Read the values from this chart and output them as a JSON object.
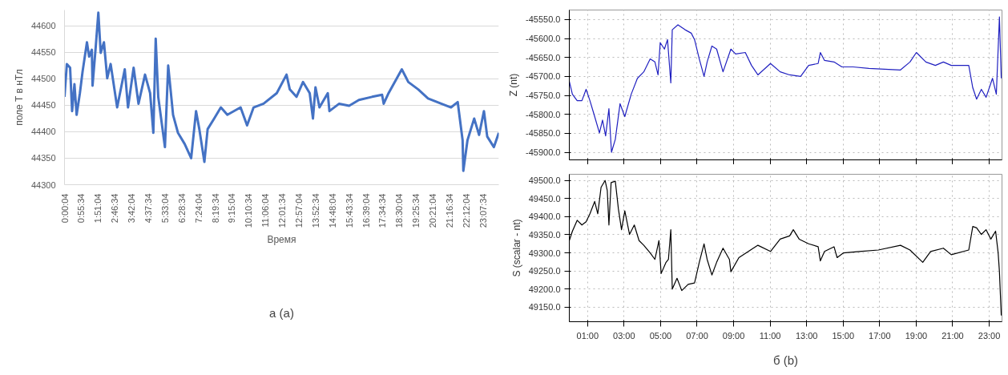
{
  "chart_data": [
    {
      "type": "line",
      "xlabel": "Время",
      "ylabel": "поле T в нТл",
      "annotations": [
        "а (a)"
      ],
      "color": "#4472c4",
      "grid": "y",
      "xlim": [
        0,
        24
      ],
      "ylim": [
        44300,
        44630
      ],
      "yticks": [
        44300,
        44350,
        44400,
        44450,
        44500,
        44550,
        44600
      ],
      "xticks": [
        {
          "value": 0.0011,
          "label": "0:00:04"
        },
        {
          "value": 0.9261,
          "label": "0:55:34"
        },
        {
          "value": 1.8511,
          "label": "1:51:04"
        },
        {
          "value": 2.7761,
          "label": "2:46:34"
        },
        {
          "value": 3.7011,
          "label": "3:42:04"
        },
        {
          "value": 4.6261,
          "label": "4:37:34"
        },
        {
          "value": 5.5511,
          "label": "5:33:04"
        },
        {
          "value": 6.4761,
          "label": "6:28:34"
        },
        {
          "value": 7.4011,
          "label": "7:24:04"
        },
        {
          "value": 8.3261,
          "label": "8:19:34"
        },
        {
          "value": 9.2511,
          "label": "9:15:04"
        },
        {
          "value": 10.1761,
          "label": "10:10:34"
        },
        {
          "value": 11.1011,
          "label": "11:06:04"
        },
        {
          "value": 12.0261,
          "label": "12:01:34"
        },
        {
          "value": 12.9511,
          "label": "12:57:04"
        },
        {
          "value": 13.8761,
          "label": "13:52:34"
        },
        {
          "value": 14.8011,
          "label": "14:48:04"
        },
        {
          "value": 15.7261,
          "label": "15:43:34"
        },
        {
          "value": 16.6511,
          "label": "16:39:04"
        },
        {
          "value": 17.5761,
          "label": "17:34:34"
        },
        {
          "value": 18.5011,
          "label": "18:30:04"
        },
        {
          "value": 19.4261,
          "label": "19:25:34"
        },
        {
          "value": 20.3511,
          "label": "20:21:04"
        },
        {
          "value": 21.2761,
          "label": "21:16:34"
        },
        {
          "value": 22.2011,
          "label": "22:12:04"
        },
        {
          "value": 23.1261,
          "label": "23:07:34"
        }
      ],
      "x": [
        0,
        0.13,
        0.31,
        0.42,
        0.55,
        0.67,
        0.85,
        1.0,
        1.24,
        1.36,
        1.51,
        1.55,
        1.73,
        1.87,
        2.0,
        2.18,
        2.36,
        2.55,
        2.91,
        3.33,
        3.51,
        3.82,
        4.09,
        4.45,
        4.73,
        4.91,
        5.04,
        5.18,
        5.55,
        5.73,
        6.0,
        6.27,
        6.64,
        7.0,
        7.27,
        7.45,
        7.73,
        7.91,
        8.27,
        8.64,
        9.0,
        9.73,
        10.09,
        10.45,
        11.0,
        11.73,
        12.27,
        12.45,
        12.82,
        13.18,
        13.55,
        13.73,
        13.87,
        14.09,
        14.55,
        14.64,
        15.18,
        15.73,
        16.27,
        17.0,
        17.55,
        17.64,
        17.91,
        18.64,
        19.0,
        19.55,
        20.09,
        20.82,
        21.36,
        21.73,
        22.0,
        22.04,
        22.27,
        22.64,
        22.91,
        23.18,
        23.36,
        23.73,
        24.0
      ],
      "values": [
        44466,
        44528,
        44521,
        44439,
        44490,
        44432,
        44473,
        44514,
        44569,
        44542,
        44555,
        44487,
        44562,
        44625,
        44549,
        44569,
        44501,
        44528,
        44446,
        44518,
        44446,
        44521,
        44453,
        44508,
        44473,
        44398,
        44576,
        44466,
        44371,
        44525,
        44432,
        44398,
        44377,
        44350,
        44439,
        44405,
        44343,
        44405,
        44425,
        44446,
        44432,
        44446,
        44412,
        44446,
        44453,
        44473,
        44508,
        44480,
        44466,
        44494,
        44473,
        44425,
        44484,
        44446,
        44473,
        44439,
        44453,
        44449,
        44460,
        44466,
        44470,
        44453,
        44473,
        44518,
        44494,
        44480,
        44463,
        44453,
        44446,
        44456,
        44384,
        44326,
        44384,
        44425,
        44394,
        44439,
        44391,
        44371,
        44398
      ]
    },
    {
      "type": "line",
      "ylabel": "Z (nt)",
      "color": "#2020c0",
      "grid": true,
      "tick_labels": "y",
      "xlim": [
        0,
        23.7
      ],
      "ylim": [
        -45920,
        -45525
      ],
      "yticks": [
        {
          "value": -45550,
          "label": "-45550.0"
        },
        {
          "value": -45600,
          "label": "-45600.0"
        },
        {
          "value": -45650,
          "label": "-45650.0"
        },
        {
          "value": -45700,
          "label": "-45700.0"
        },
        {
          "value": -45750,
          "label": "-45750.0"
        },
        {
          "value": -45800,
          "label": "-45800.0"
        },
        {
          "value": -45850,
          "label": "-45850.0"
        },
        {
          "value": -45900,
          "label": "-45900.0"
        }
      ],
      "xticks": [
        {
          "value": 1,
          "label": null
        },
        {
          "value": 3,
          "label": null
        },
        {
          "value": 5,
          "label": null
        },
        {
          "value": 7,
          "label": null
        },
        {
          "value": 9,
          "label": null
        },
        {
          "value": 11,
          "label": null
        },
        {
          "value": 13,
          "label": null
        },
        {
          "value": 15,
          "label": null
        },
        {
          "value": 17,
          "label": null
        },
        {
          "value": 19,
          "label": null
        },
        {
          "value": 21,
          "label": null
        },
        {
          "value": 23,
          "label": null
        }
      ],
      "x": [
        0,
        0.17,
        0.43,
        0.69,
        0.92,
        1.13,
        1.39,
        1.65,
        1.82,
        1.99,
        2.17,
        2.31,
        2.52,
        2.78,
        3.04,
        3.39,
        3.73,
        4.08,
        4.43,
        4.69,
        4.86,
        4.98,
        5.21,
        5.38,
        5.56,
        5.64,
        5.95,
        6.34,
        6.68,
        6.86,
        7.12,
        7.38,
        7.55,
        7.81,
        8.07,
        8.42,
        8.85,
        9.11,
        9.64,
        9.98,
        10.33,
        11.02,
        11.55,
        12.07,
        12.67,
        13.11,
        13.63,
        13.75,
        13.98,
        14.5,
        14.93,
        15.54,
        16.41,
        17.27,
        18.14,
        18.66,
        19.01,
        19.53,
        20.05,
        20.49,
        20.92,
        21.88,
        22.1,
        22.31,
        22.57,
        22.83,
        23.18,
        23.39,
        23.56,
        23.66
      ],
      "values": [
        -45713,
        -45747,
        -45764,
        -45764,
        -45734,
        -45764,
        -45806,
        -45849,
        -45815,
        -45857,
        -45785,
        -45900,
        -45866,
        -45772,
        -45806,
        -45747,
        -45705,
        -45688,
        -45654,
        -45662,
        -45696,
        -45611,
        -45628,
        -45603,
        -45717,
        -45577,
        -45564,
        -45577,
        -45586,
        -45603,
        -45654,
        -45700,
        -45662,
        -45620,
        -45628,
        -45688,
        -45628,
        -45641,
        -45637,
        -45671,
        -45696,
        -45666,
        -45688,
        -45696,
        -45700,
        -45671,
        -45666,
        -45637,
        -45658,
        -45662,
        -45675,
        -45675,
        -45679,
        -45681,
        -45683,
        -45662,
        -45637,
        -45662,
        -45671,
        -45662,
        -45671,
        -45671,
        -45730,
        -45760,
        -45734,
        -45755,
        -45705,
        -45747,
        -45543,
        -45705
      ]
    },
    {
      "type": "line",
      "ylabel": "S (scalar - nt)",
      "annotations": [
        "б (b)"
      ],
      "color": "#000000",
      "grid": true,
      "xlim": [
        0,
        23.7
      ],
      "ylim": [
        49110,
        49517
      ],
      "yticks": [
        {
          "value": 49150,
          "label": "49150.0"
        },
        {
          "value": 49200,
          "label": "49200.0"
        },
        {
          "value": 49250,
          "label": "49250.0"
        },
        {
          "value": 49300,
          "label": "49300.0"
        },
        {
          "value": 49350,
          "label": "49350.0"
        },
        {
          "value": 49400,
          "label": "49400.0"
        },
        {
          "value": 49450,
          "label": "49450.0"
        },
        {
          "value": 49500,
          "label": "49500.0"
        }
      ],
      "xticks": [
        {
          "value": 1,
          "label": "01:00"
        },
        {
          "value": 3,
          "label": "03:00"
        },
        {
          "value": 5,
          "label": "05:00"
        },
        {
          "value": 7,
          "label": "07:00"
        },
        {
          "value": 9,
          "label": "09:00"
        },
        {
          "value": 11,
          "label": "11:00"
        },
        {
          "value": 13,
          "label": "13:00"
        },
        {
          "value": 15,
          "label": "15:00"
        },
        {
          "value": 17,
          "label": "17:00"
        },
        {
          "value": 19,
          "label": "19:00"
        },
        {
          "value": 21,
          "label": "21:00"
        },
        {
          "value": 23,
          "label": "23:00"
        }
      ],
      "x": [
        0,
        0.17,
        0.43,
        0.69,
        0.92,
        1.13,
        1.39,
        1.56,
        1.74,
        1.96,
        2.08,
        2.17,
        2.29,
        2.52,
        2.69,
        2.86,
        3.04,
        3.3,
        3.56,
        3.82,
        4.08,
        4.43,
        4.69,
        4.91,
        5.03,
        5.3,
        5.43,
        5.56,
        5.64,
        5.9,
        6.16,
        6.51,
        6.86,
        7.12,
        7.38,
        7.55,
        7.81,
        8.07,
        8.42,
        8.77,
        8.85,
        9.29,
        9.81,
        10.33,
        11.02,
        11.55,
        12.07,
        12.27,
        12.59,
        13.11,
        13.63,
        13.75,
        13.98,
        14.5,
        14.67,
        15.02,
        15.89,
        16.93,
        18.14,
        18.66,
        19.36,
        19.79,
        20.49,
        20.92,
        21.88,
        22.1,
        22.31,
        22.57,
        22.83,
        23.09,
        23.35,
        23.49,
        23.56,
        23.66
      ],
      "values": [
        49334,
        49360,
        49390,
        49377,
        49386,
        49408,
        49442,
        49408,
        49481,
        49500,
        49472,
        49377,
        49494,
        49498,
        49421,
        49364,
        49416,
        49351,
        49377,
        49334,
        49321,
        49300,
        49282,
        49334,
        49243,
        49274,
        49282,
        49364,
        49200,
        49230,
        49196,
        49213,
        49217,
        49274,
        49325,
        49282,
        49239,
        49274,
        49313,
        49282,
        49248,
        49287,
        49304,
        49321,
        49304,
        49338,
        49347,
        49364,
        49338,
        49325,
        49317,
        49278,
        49304,
        49317,
        49287,
        49300,
        49304,
        49308,
        49321,
        49308,
        49274,
        49304,
        49313,
        49295,
        49308,
        49373,
        49369,
        49351,
        49364,
        49338,
        49360,
        49300,
        49248,
        49127
      ]
    }
  ]
}
